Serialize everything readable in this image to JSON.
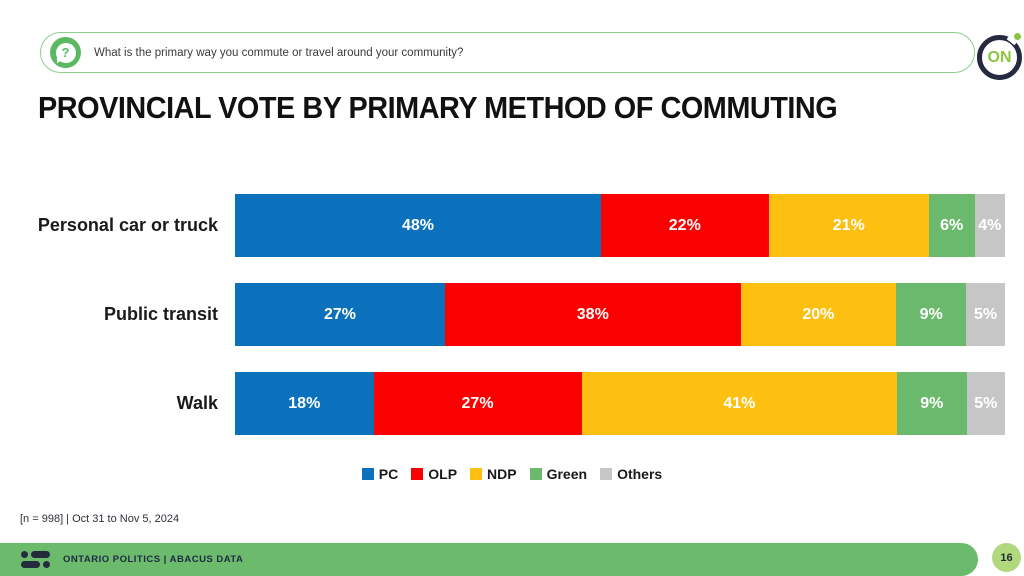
{
  "banner": {
    "question": "What is the primary way you commute or travel around your community?",
    "logo_text": "ON"
  },
  "title": "PROVINCIAL VOTE BY PRIMARY METHOD OF COMMUTING",
  "chart_data": {
    "type": "bar",
    "variant": "horizontal-stacked",
    "categories": [
      "Personal car or truck",
      "Public transit",
      "Walk"
    ],
    "series": [
      {
        "name": "PC",
        "color": "#0C71BD",
        "values": [
          48,
          27,
          18
        ]
      },
      {
        "name": "OLP",
        "color": "#FB0000",
        "values": [
          22,
          38,
          27
        ]
      },
      {
        "name": "NDP",
        "color": "#FDC010",
        "values": [
          21,
          20,
          41
        ]
      },
      {
        "name": "Green",
        "color": "#6BB96C",
        "values": [
          6,
          9,
          9
        ]
      },
      {
        "name": "Others",
        "color": "#C6C6C6",
        "values": [
          4,
          5,
          5
        ]
      }
    ],
    "value_suffix": "%",
    "data_labels": true,
    "data_label_color": "#FFFFFF",
    "legend_position": "bottom",
    "xlim": [
      0,
      100
    ]
  },
  "footnote": "[n = 998] | Oct 31 to Nov 5, 2024",
  "footer": {
    "label": "ONTARIO POLITICS | ABACUS DATA",
    "page_number": "16"
  },
  "colors": {
    "footer_green": "#6CBA6C",
    "banner_border_green": "#90CE90",
    "question_icon_green": "#5CB963",
    "page_badge_green": "#AFD97C",
    "logo_navy": "#252A41",
    "logo_lime": "#8CC63F"
  }
}
